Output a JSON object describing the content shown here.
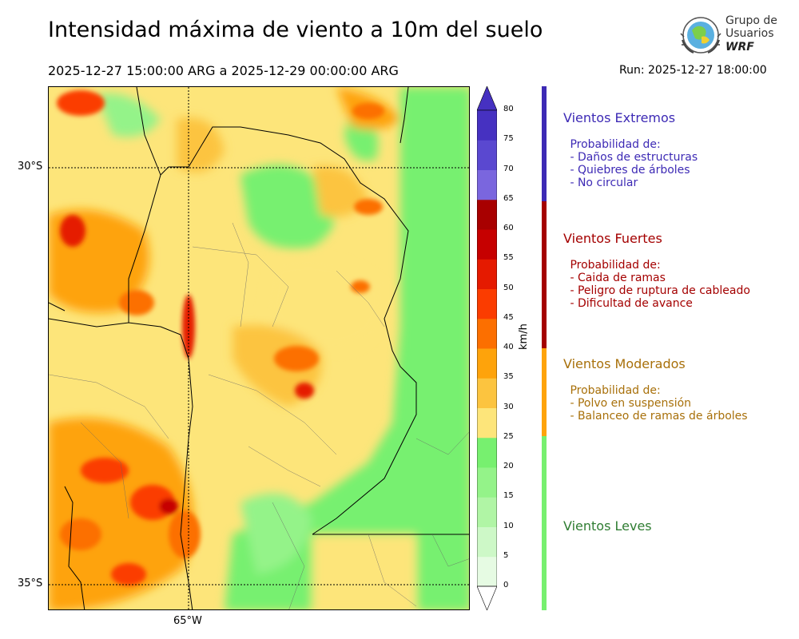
{
  "title": "Intensidad máxima de viento a 10m del suelo",
  "period": "2025-12-27 15:00:00 ARG  a  2025-12-29 00:00:00 ARG",
  "run": "Run: 2025-12-27 18:00:00",
  "logo": {
    "line1": "Grupo de",
    "line2": "Usuarios",
    "line3": "WRF"
  },
  "map": {
    "lat_labels": [
      "30°S",
      "35°S"
    ],
    "lon_labels": [
      "65°W"
    ]
  },
  "colorbar": {
    "unit": "km/h",
    "ticks": [
      "0",
      "5",
      "10",
      "15",
      "20",
      "25",
      "30",
      "35",
      "40",
      "45",
      "50",
      "55",
      "60",
      "65",
      "70",
      "75",
      "80"
    ],
    "colors": [
      "#e6fbe3",
      "#cdf8c7",
      "#b0f5a5",
      "#94f389",
      "#77f06f",
      "#fde57a",
      "#fcc43f",
      "#fea30b",
      "#fc6f00",
      "#fb3c00",
      "#e51a00",
      "#c60000",
      "#a80000",
      "#7a66de",
      "#5a48d0",
      "#4631c1"
    ]
  },
  "categories": [
    {
      "title": "Vientos Extremos",
      "color": "#3d2ab5",
      "bar_color": "#3d2ab5",
      "desc": [
        " Probabilidad de:",
        " - Daños de estructuras",
        " - Quiebres de árboles",
        " - No circular"
      ]
    },
    {
      "title": "Vientos Fuertes",
      "color": "#a40000",
      "bar_color": "#a40000",
      "desc": [
        " Probabilidad de:",
        " - Caida de ramas",
        " - Peligro de ruptura de cableado",
        " - Dificultad de avance"
      ]
    },
    {
      "title": "Vientos Moderados",
      "color": "#a8700a",
      "bar_color": "#fea30b",
      "desc": [
        " Probabilidad de:",
        " - Polvo en suspensión",
        " - Balanceo de ramas de árboles"
      ]
    },
    {
      "title": "Vientos Leves",
      "color": "#2f7d32",
      "bar_color": "#77f06f",
      "desc": []
    }
  ]
}
